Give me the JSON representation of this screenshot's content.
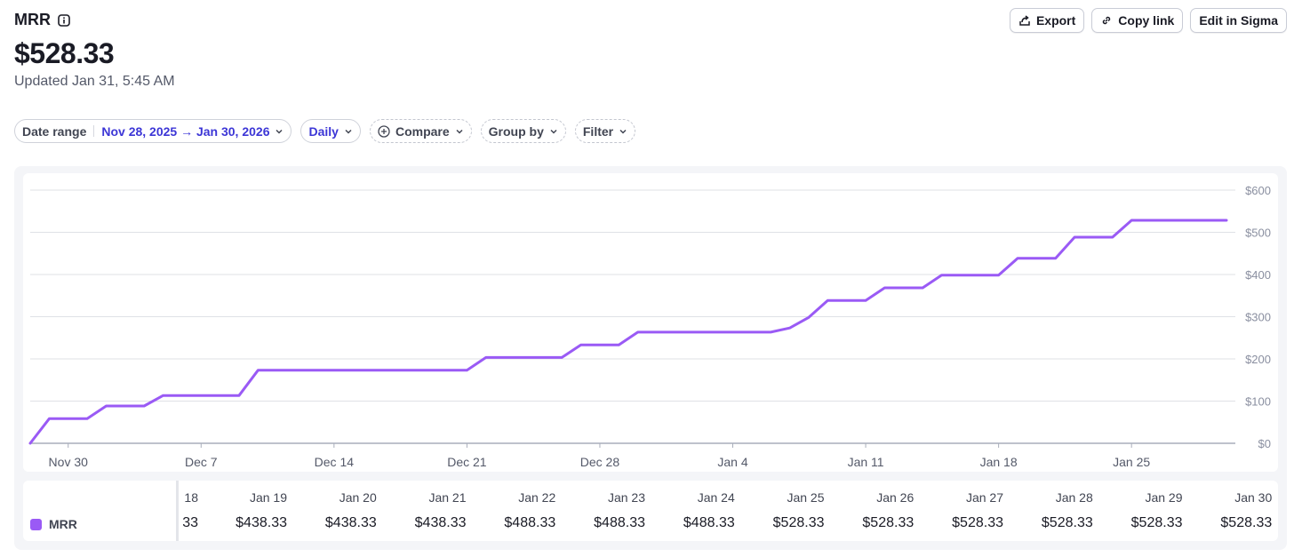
{
  "header": {
    "title": "MRR",
    "value": "$528.33",
    "updated": "Updated Jan 31, 5:45 AM"
  },
  "actions": {
    "export": "Export",
    "copy_link": "Copy link",
    "edit": "Edit in Sigma"
  },
  "filters": {
    "date_range_label": "Date range",
    "date_range_value": "Nov 28, 2025 → Jan 30, 2026",
    "interval": "Daily",
    "compare": "Compare",
    "group_by": "Group by",
    "filter": "Filter"
  },
  "colors": {
    "series": "#9a5af5",
    "accent": "#3c36d6"
  },
  "chart_data": {
    "type": "line",
    "title": "MRR",
    "xlabel": "",
    "ylabel": "",
    "ylim": [
      0,
      600
    ],
    "yticks": [
      0,
      100,
      200,
      300,
      400,
      500,
      600
    ],
    "ytick_labels": [
      "$0",
      "$100",
      "$200",
      "$300",
      "$400",
      "$500",
      "$600"
    ],
    "xtick_labels": [
      {
        "label": "Nov 30",
        "day": 2
      },
      {
        "label": "Dec 7",
        "day": 9
      },
      {
        "label": "Dec 14",
        "day": 16
      },
      {
        "label": "Dec 21",
        "day": 23
      },
      {
        "label": "Dec 28",
        "day": 30
      },
      {
        "label": "Jan 4",
        "day": 37
      },
      {
        "label": "Jan 11",
        "day": 44
      },
      {
        "label": "Jan 18",
        "day": 51
      },
      {
        "label": "Jan 25",
        "day": 58
      }
    ],
    "x_day_range": [
      0,
      63
    ],
    "series": [
      {
        "name": "MRR",
        "points": [
          [
            0,
            0
          ],
          [
            1,
            58.33
          ],
          [
            3,
            58.33
          ],
          [
            4,
            88.33
          ],
          [
            6,
            88.33
          ],
          [
            7,
            113.33
          ],
          [
            11,
            113.33
          ],
          [
            12,
            173.33
          ],
          [
            23,
            173.33
          ],
          [
            24,
            203.33
          ],
          [
            28,
            203.33
          ],
          [
            29,
            233.33
          ],
          [
            31,
            233.33
          ],
          [
            32,
            263.33
          ],
          [
            39,
            263.33
          ],
          [
            40,
            273.33
          ],
          [
            41,
            298.33
          ],
          [
            42,
            338.33
          ],
          [
            44,
            338.33
          ],
          [
            45,
            368.33
          ],
          [
            47,
            368.33
          ],
          [
            48,
            398.33
          ],
          [
            51,
            398.33
          ],
          [
            52,
            438.33
          ],
          [
            54,
            438.33
          ],
          [
            55,
            488.33
          ],
          [
            57,
            488.33
          ],
          [
            58,
            528.33
          ],
          [
            63,
            528.33
          ]
        ]
      }
    ]
  },
  "table": {
    "series_name": "MRR",
    "partial_date": "18",
    "partial_value": "33",
    "columns": [
      {
        "date": "Jan 19",
        "value": "$438.33"
      },
      {
        "date": "Jan 20",
        "value": "$438.33"
      },
      {
        "date": "Jan 21",
        "value": "$438.33"
      },
      {
        "date": "Jan 22",
        "value": "$488.33"
      },
      {
        "date": "Jan 23",
        "value": "$488.33"
      },
      {
        "date": "Jan 24",
        "value": "$488.33"
      },
      {
        "date": "Jan 25",
        "value": "$528.33"
      },
      {
        "date": "Jan 26",
        "value": "$528.33"
      },
      {
        "date": "Jan 27",
        "value": "$528.33"
      },
      {
        "date": "Jan 28",
        "value": "$528.33"
      },
      {
        "date": "Jan 29",
        "value": "$528.33"
      },
      {
        "date": "Jan 30",
        "value": "$528.33"
      }
    ]
  }
}
